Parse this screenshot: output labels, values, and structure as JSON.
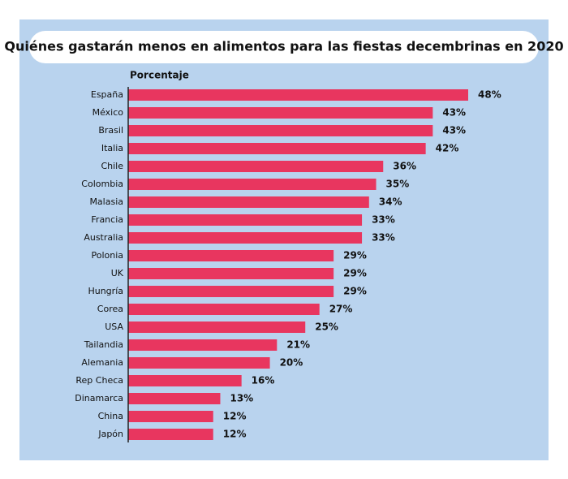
{
  "chart_data": {
    "type": "bar",
    "orientation": "horizontal",
    "title": "Quiénes gastarán menos en alimentos para las fiestas decembrinas en 2020",
    "xlabel": "Porcentaje",
    "categories": [
      "España",
      "México",
      "Brasil",
      "Italia",
      "Chile",
      "Colombia",
      "Malasia",
      "Francia",
      "Australia",
      "Polonia",
      "UK",
      "Hungría",
      "Corea",
      "USA",
      "Tailandia",
      "Alemania",
      "Rep Checa",
      "Dinamarca",
      "China",
      "Japón"
    ],
    "values": [
      48,
      43,
      43,
      42,
      36,
      35,
      34,
      33,
      33,
      29,
      29,
      29,
      27,
      25,
      21,
      20,
      16,
      13,
      12,
      12
    ],
    "value_labels": [
      "48%",
      "43%",
      "43%",
      "42%",
      "36%",
      "35%",
      "34%",
      "33%",
      "33%",
      "29%",
      "29%",
      "29%",
      "27%",
      "25%",
      "21%",
      "20%",
      "16%",
      "13%",
      "12%",
      "12%"
    ],
    "color": "#e8365f",
    "xlim": [
      0,
      48
    ]
  }
}
